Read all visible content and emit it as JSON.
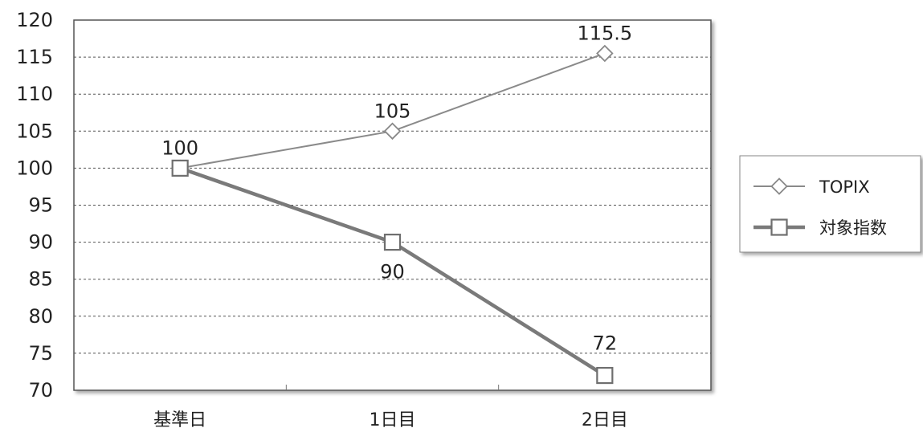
{
  "chart_data": {
    "type": "line",
    "categories": [
      "基準日",
      "1日目",
      "2日目"
    ],
    "series": [
      {
        "name": "TOPIX",
        "values": [
          100,
          105,
          115.5
        ],
        "labels": [
          "100",
          "105",
          "115.5"
        ],
        "marker": "diamond",
        "color": "#8a8a8a"
      },
      {
        "name": "対象指数",
        "values": [
          100,
          90,
          72
        ],
        "labels": [
          "",
          "90",
          "72"
        ],
        "marker": "square",
        "color": "#7a7a7a"
      }
    ],
    "ylim": [
      70,
      120
    ],
    "yticks": [
      "70",
      "75",
      "80",
      "85",
      "90",
      "95",
      "100",
      "105",
      "110",
      "115",
      "120"
    ],
    "grid": true,
    "legend_position": "right"
  }
}
